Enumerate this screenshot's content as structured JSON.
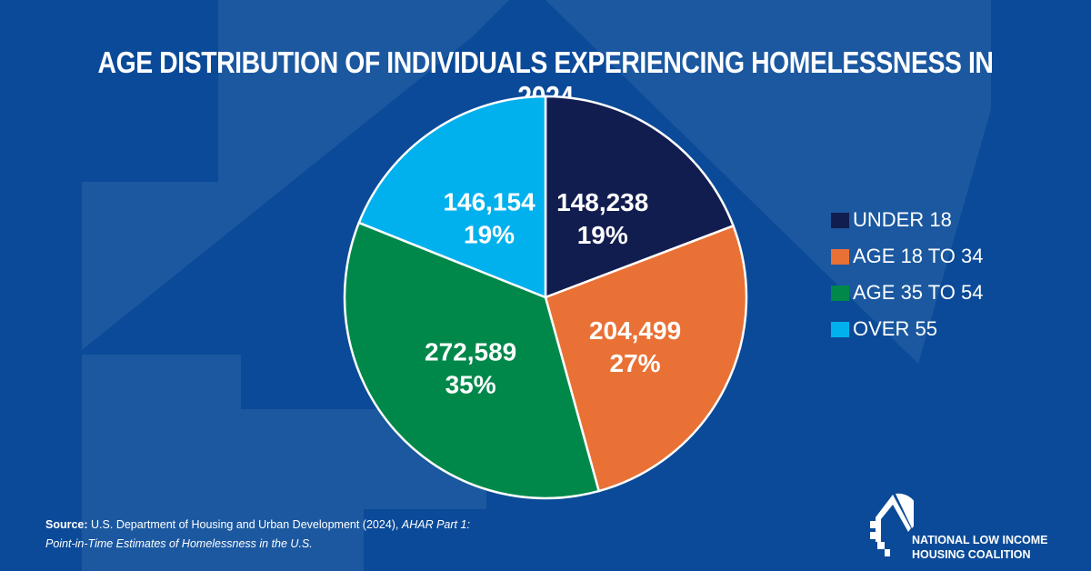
{
  "chart_data": {
    "type": "pie",
    "title": "AGE DISTRIBUTION OF INDIVIDUALS EXPERIENCING HOMELESSNESS IN 2024",
    "start": "top",
    "direction": "clockwise",
    "legend_position": "right",
    "slices": [
      {
        "label": "UNDER 18",
        "value": 148238,
        "value_label": "148,238",
        "percent_label": "19%",
        "color": "#121d4f"
      },
      {
        "label": "AGE 18 TO 34",
        "value": 204499,
        "value_label": "204,499",
        "percent_label": "27%",
        "color": "#e97135"
      },
      {
        "label": "AGE 35 TO 54",
        "value": 272589,
        "value_label": "272,589",
        "percent_label": "35%",
        "color": "#00884b"
      },
      {
        "label": "OVER 55",
        "value": 146154,
        "value_label": "146,154",
        "percent_label": "19%",
        "color": "#00b1ed"
      }
    ]
  },
  "source": {
    "label": "Source:",
    "text": "U.S. Department of Housing and Urban Development (2024),",
    "italic_1": "AHAR Part 1:",
    "italic_2": "Point-in-Time Estimates of Homelessness in the U.S."
  },
  "logo": {
    "line1": "NATIONAL LOW INCOME",
    "line2": "HOUSING COALITION"
  }
}
